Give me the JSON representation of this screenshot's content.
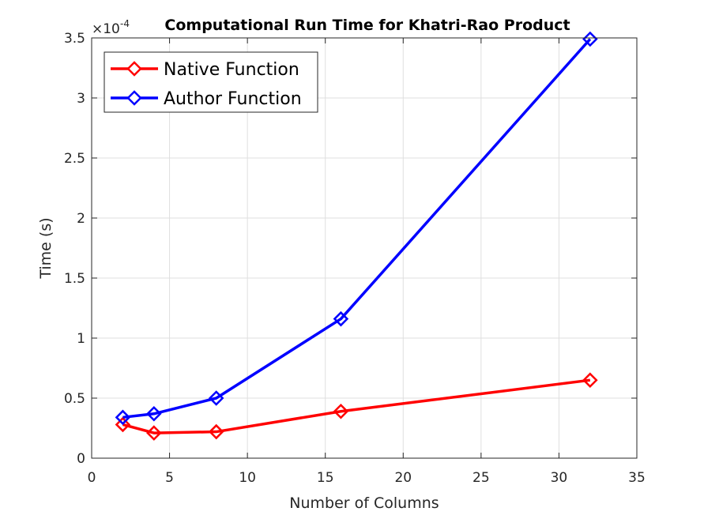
{
  "chart_data": {
    "type": "line",
    "title": "Computational Run Time for Khatri-Rao Product",
    "xlabel": "Number of Columns",
    "ylabel": "Time (s)",
    "y_exponent_label": "×10",
    "y_exponent_power": "-4",
    "xlim": [
      0,
      35
    ],
    "ylim": [
      0,
      3.5
    ],
    "x_ticks": [
      0,
      5,
      10,
      15,
      20,
      25,
      30,
      35
    ],
    "y_ticks": [
      0,
      0.5,
      1,
      1.5,
      2,
      2.5,
      3,
      3.5
    ],
    "x_tick_labels": [
      "0",
      "5",
      "10",
      "15",
      "20",
      "25",
      "30",
      "35"
    ],
    "y_tick_labels": [
      "0",
      "0.5",
      "1",
      "1.5",
      "2",
      "2.5",
      "3",
      "3.5"
    ],
    "grid": true,
    "legend_position": "top-left",
    "marker": "diamond",
    "x": [
      2,
      4,
      8,
      16,
      32
    ],
    "series": [
      {
        "name": "Native Function",
        "color": "#ff0000",
        "values": [
          0.28,
          0.21,
          0.22,
          0.39,
          0.65
        ]
      },
      {
        "name": "Author Function",
        "color": "#0000ff",
        "values": [
          0.34,
          0.37,
          0.5,
          1.16,
          3.49
        ]
      }
    ]
  }
}
